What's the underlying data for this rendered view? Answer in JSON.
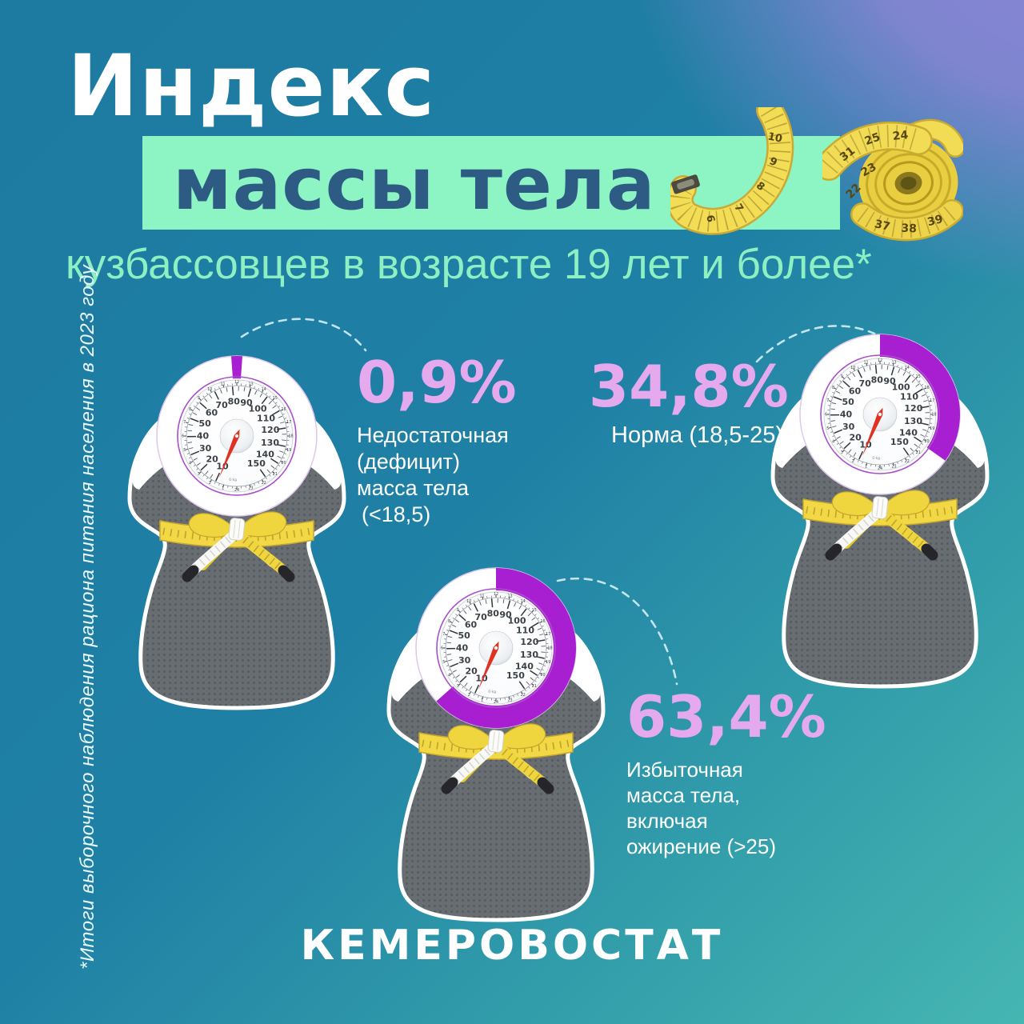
{
  "header": {
    "title_line1": "Индекс",
    "title_line2": "массы тела",
    "subtitle": "кузбассовцев в возрасте 19 лет и более*"
  },
  "stats": [
    {
      "value": "0,9%",
      "percent": 0.9,
      "label_lines": [
        "Недостаточная",
        "(дефицит)",
        "масса тела",
        "(<18,5)"
      ]
    },
    {
      "value": "34,8%",
      "percent": 34.8,
      "label_lines": [
        "Норма (18,5-25)"
      ]
    },
    {
      "value": "63,4%",
      "percent": 63.4,
      "label_lines": [
        "Избыточная",
        "масса тела,",
        "включая",
        "ожирение (>25)"
      ]
    }
  ],
  "footnote": "*Итоги выборочного наблюдения рациона питания населения в 2023 году",
  "footer": {
    "brand": "КЕМЕРОВОСТАТ"
  },
  "colors": {
    "accent_purple": "#a81fd2",
    "percent_pink": "#e5a9ee",
    "band_green": "#8df5c3",
    "title_navy": "#2e5b84",
    "subtitle_mint": "#8cf0c2",
    "bg_teal": "#1d7aa1",
    "bg_turquoise": "#46b6b2",
    "bg_lavender": "#8084cf",
    "tape_yellow": "#f2d845"
  },
  "chart_data": {
    "type": "pie",
    "donut": true,
    "title": "Индекс массы тела кузбассовцев в возрасте 19 лет и более",
    "unit": "%",
    "categories": [
      "Недостаточная (дефицит) масса тела (<18,5)",
      "Норма (18,5-25)",
      "Избыточная масса тела, включая ожирение (>25)"
    ],
    "values": [
      0.9,
      34.8,
      63.4
    ],
    "legend_position": "none",
    "note": "*Итоги выборочного наблюдения рациона питания населения в 2023 году",
    "source": "КЕМЕРОВОСТАТ"
  }
}
